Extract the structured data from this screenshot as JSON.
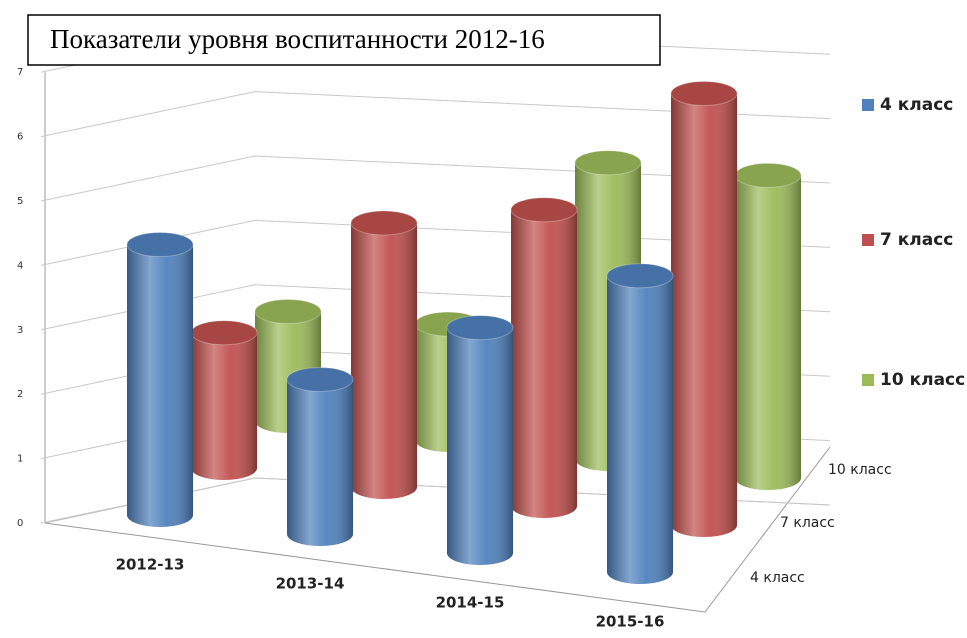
{
  "chart_data": {
    "type": "bar3d",
    "title": "Показатели уровня воспитанности 2012-16",
    "categories": [
      "2012-13",
      "2013-14",
      "2014-15",
      "2015-16"
    ],
    "series": [
      {
        "name": "4 класс",
        "color": "#4f81bd",
        "values": [
          4.2,
          2.4,
          3.5,
          4.6
        ]
      },
      {
        "name": "7 класс",
        "color": "#c0504d",
        "values": [
          2.1,
          4.1,
          4.6,
          6.7
        ]
      },
      {
        "name": "10 класс",
        "color": "#9bbb59",
        "values": [
          1.7,
          1.8,
          4.6,
          4.7
        ]
      }
    ],
    "ylim": [
      0,
      7
    ],
    "yticks": [
      0,
      1,
      2,
      3,
      4,
      5,
      6,
      7
    ],
    "grid": true,
    "legend": "right"
  }
}
